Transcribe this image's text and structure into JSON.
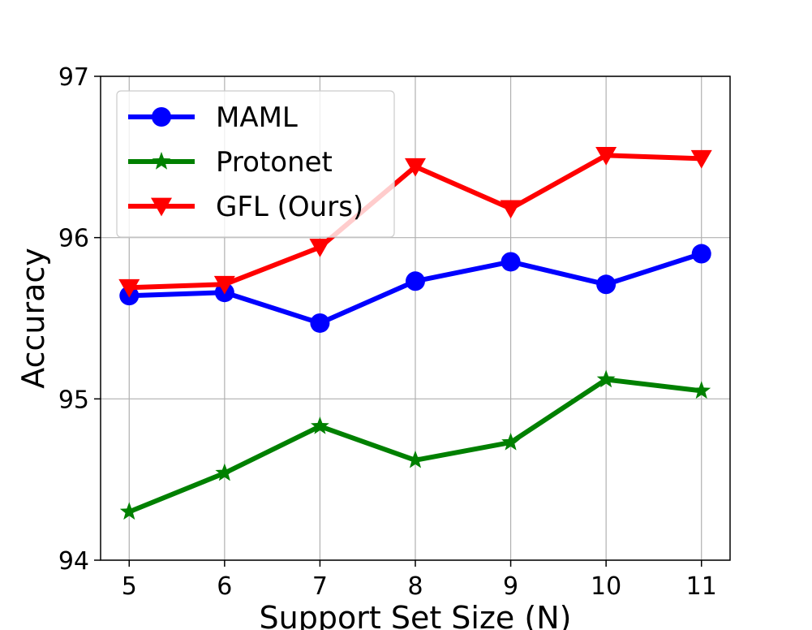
{
  "chart_data": {
    "type": "line",
    "title": "",
    "xlabel": "Support Set Size (N)",
    "ylabel": "Accuracy",
    "x": [
      5,
      6,
      7,
      8,
      9,
      10,
      11
    ],
    "x_ticks": [
      "5",
      "6",
      "7",
      "8",
      "9",
      "10",
      "11"
    ],
    "y_ticks": [
      "94",
      "95",
      "96",
      "97"
    ],
    "xlim": [
      4.7,
      11.3
    ],
    "ylim": [
      94,
      97
    ],
    "grid": true,
    "legend_position": "top-left",
    "series": [
      {
        "name": "MAML",
        "color": "#0000ff",
        "marker": "circle",
        "values": [
          95.64,
          95.66,
          95.47,
          95.73,
          95.85,
          95.71,
          95.9
        ]
      },
      {
        "name": "Protonet",
        "color": "#008000",
        "marker": "star",
        "values": [
          94.3,
          94.54,
          94.83,
          94.62,
          94.73,
          95.12,
          95.05
        ]
      },
      {
        "name": "GFL (Ours)",
        "color": "#ff0000",
        "marker": "triangle-down",
        "values": [
          95.69,
          95.71,
          95.94,
          96.44,
          96.18,
          96.51,
          96.49
        ]
      }
    ]
  }
}
